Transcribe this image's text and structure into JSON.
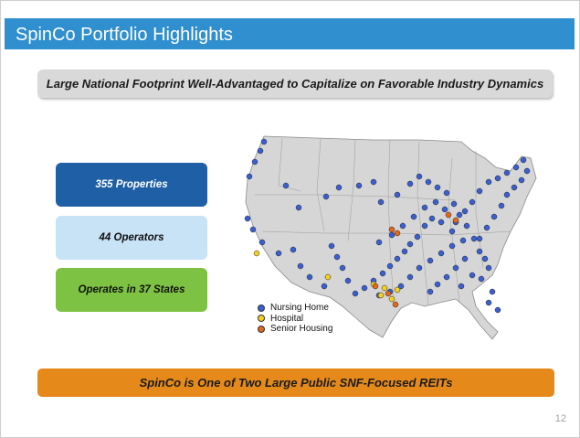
{
  "title": "SpinCo Portfolio Highlights",
  "banner": "Large National Footprint Well-Advantaged to Capitalize on Favorable Industry Dynamics",
  "stats": [
    {
      "label": "355 Properties",
      "color": "#1f5fa6"
    },
    {
      "label": "44 Operators",
      "color": "#c8e2f6"
    },
    {
      "label": "Operates in 37 States",
      "color": "#7dc242"
    }
  ],
  "legend": [
    {
      "label": "Nursing Home",
      "color": "#3a5fd0"
    },
    {
      "label": "Hospital",
      "color": "#f5d020"
    },
    {
      "label": "Senior Housing",
      "color": "#e2671f"
    }
  ],
  "footer": "SpinCo is One of Two Large Public SNF-Focused REITs",
  "page_number": "12",
  "colors": {
    "title_bar": "#2f8fcf",
    "map_land": "#d6d6d6",
    "map_border": "#8a8a8a"
  }
}
